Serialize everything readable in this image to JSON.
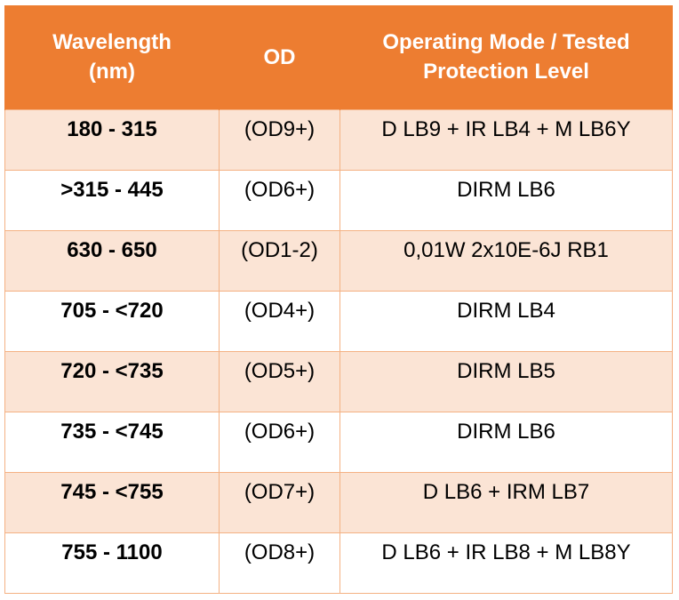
{
  "table": {
    "headers": [
      {
        "lines": [
          "Wavelength",
          "(nm)"
        ]
      },
      {
        "lines": [
          "OD"
        ]
      },
      {
        "lines": [
          "Operating Mode / Tested",
          "Protection Level"
        ]
      }
    ],
    "rows": [
      {
        "wavelength": "180 - 315",
        "od": "(OD9+)",
        "mode": "D LB9 + IR LB4 + M LB6Y"
      },
      {
        "wavelength": ">315 - 445",
        "od": "(OD6+)",
        "mode": "DIRM LB6"
      },
      {
        "wavelength": "630 - 650",
        "od": "(OD1-2)",
        "mode": "0,01W 2x10E-6J RB1"
      },
      {
        "wavelength": "705 - <720",
        "od": "(OD4+)",
        "mode": "DIRM LB4"
      },
      {
        "wavelength": "720 - <735",
        "od": "(OD5+)",
        "mode": "DIRM LB5"
      },
      {
        "wavelength": "735 - <745",
        "od": "(OD6+)",
        "mode": "DIRM LB6"
      },
      {
        "wavelength": "745 - <755",
        "od": "(OD7+)",
        "mode": "D LB6 + IRM LB7"
      },
      {
        "wavelength": "755 - 1100",
        "od": "(OD8+)",
        "mode": "D LB6 + IR LB8 + M LB8Y"
      }
    ],
    "colors": {
      "header_bg": "#ED7D31",
      "header_text": "#FFFFFF",
      "shaded_row_bg": "#FBE4D5",
      "plain_row_bg": "#FFFFFF",
      "border": "#F4B183"
    }
  }
}
